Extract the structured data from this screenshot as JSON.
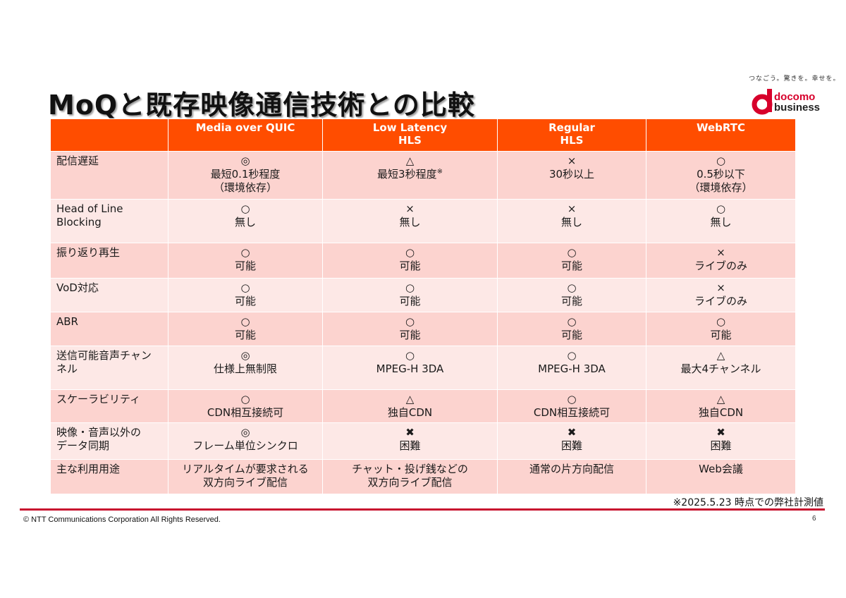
{
  "title": "MoQと既存映像通信技術との比較",
  "brand": {
    "tagline": "つなごう。驚きを。幸せを。",
    "logo_line1": "docomo",
    "logo_line2": "business",
    "color": "#d7002b"
  },
  "table": {
    "headers": [
      [
        "",
        ""
      ],
      [
        "Media over QUIC",
        ""
      ],
      [
        "Low Latency",
        "HLS"
      ],
      [
        "Regular",
        "HLS"
      ],
      [
        "WebRTC",
        ""
      ]
    ],
    "rows": [
      {
        "label": [
          "配信遅延",
          ""
        ],
        "cells": [
          [
            "◎",
            "最短0.1秒程度",
            "（環境依存）"
          ],
          [
            "△",
            "最短3秒程度",
            ""
          ],
          [
            "×",
            "30秒以上",
            ""
          ],
          [
            "○",
            "0.5秒以下",
            "（環境依存）"
          ]
        ]
      },
      {
        "label": [
          "Head of Line",
          "Blocking"
        ],
        "cells": [
          [
            "○",
            "無し",
            ""
          ],
          [
            "×",
            "無し",
            ""
          ],
          [
            "×",
            "無し",
            ""
          ],
          [
            "○",
            "無し",
            ""
          ]
        ]
      },
      {
        "label": [
          "振り返り再生",
          ""
        ],
        "cells": [
          [
            "○",
            "可能",
            ""
          ],
          [
            "○",
            "可能",
            ""
          ],
          [
            "○",
            "可能",
            ""
          ],
          [
            "×",
            "ライブのみ",
            ""
          ]
        ]
      },
      {
        "label": [
          "VoD対応",
          ""
        ],
        "cells": [
          [
            "○",
            "可能",
            ""
          ],
          [
            "○",
            "可能",
            ""
          ],
          [
            "○",
            "可能",
            ""
          ],
          [
            "×",
            "ライブのみ",
            ""
          ]
        ]
      },
      {
        "label": [
          "ABR",
          ""
        ],
        "cells": [
          [
            "○",
            "可能",
            ""
          ],
          [
            "○",
            "可能",
            ""
          ],
          [
            "○",
            "可能",
            ""
          ],
          [
            "○",
            "可能",
            ""
          ]
        ]
      },
      {
        "label": [
          "送信可能音声チャン",
          "ネル"
        ],
        "cells": [
          [
            "◎",
            "仕様上無制限",
            ""
          ],
          [
            "○",
            "MPEG-H 3DA",
            ""
          ],
          [
            "○",
            "MPEG-H 3DA",
            ""
          ],
          [
            "△",
            "最大4チャンネル",
            ""
          ]
        ]
      },
      {
        "label": [
          "スケーラビリティ",
          ""
        ],
        "cells": [
          [
            "○",
            "CDN相互接続可",
            ""
          ],
          [
            "△",
            "独自CDN",
            ""
          ],
          [
            "○",
            "CDN相互接続可",
            ""
          ],
          [
            "△",
            "独自CDN",
            ""
          ]
        ]
      },
      {
        "label": [
          "映像・音声以外の",
          "データ同期"
        ],
        "cells": [
          [
            "◎",
            "フレーム単位シンクロ",
            ""
          ],
          [
            "✖",
            "困難",
            ""
          ],
          [
            "✖",
            "困難",
            ""
          ],
          [
            "✖",
            "困難",
            ""
          ]
        ]
      },
      {
        "label": [
          "主な利用用途",
          ""
        ],
        "cells": [
          [
            "リアルタイムが要求される",
            "双方向ライブ配信",
            ""
          ],
          [
            "チャット・投げ銭などの",
            "双方向ライブ配信",
            ""
          ],
          [
            "通常の片方向配信",
            "",
            ""
          ],
          [
            "Web会議",
            "",
            ""
          ]
        ]
      }
    ],
    "footnote_mark": "※"
  },
  "note": "※2025.5.23 時点での弊社計測値",
  "copyright": "© NTT Communications Corporation All Rights Reserved.",
  "page_number": "6"
}
